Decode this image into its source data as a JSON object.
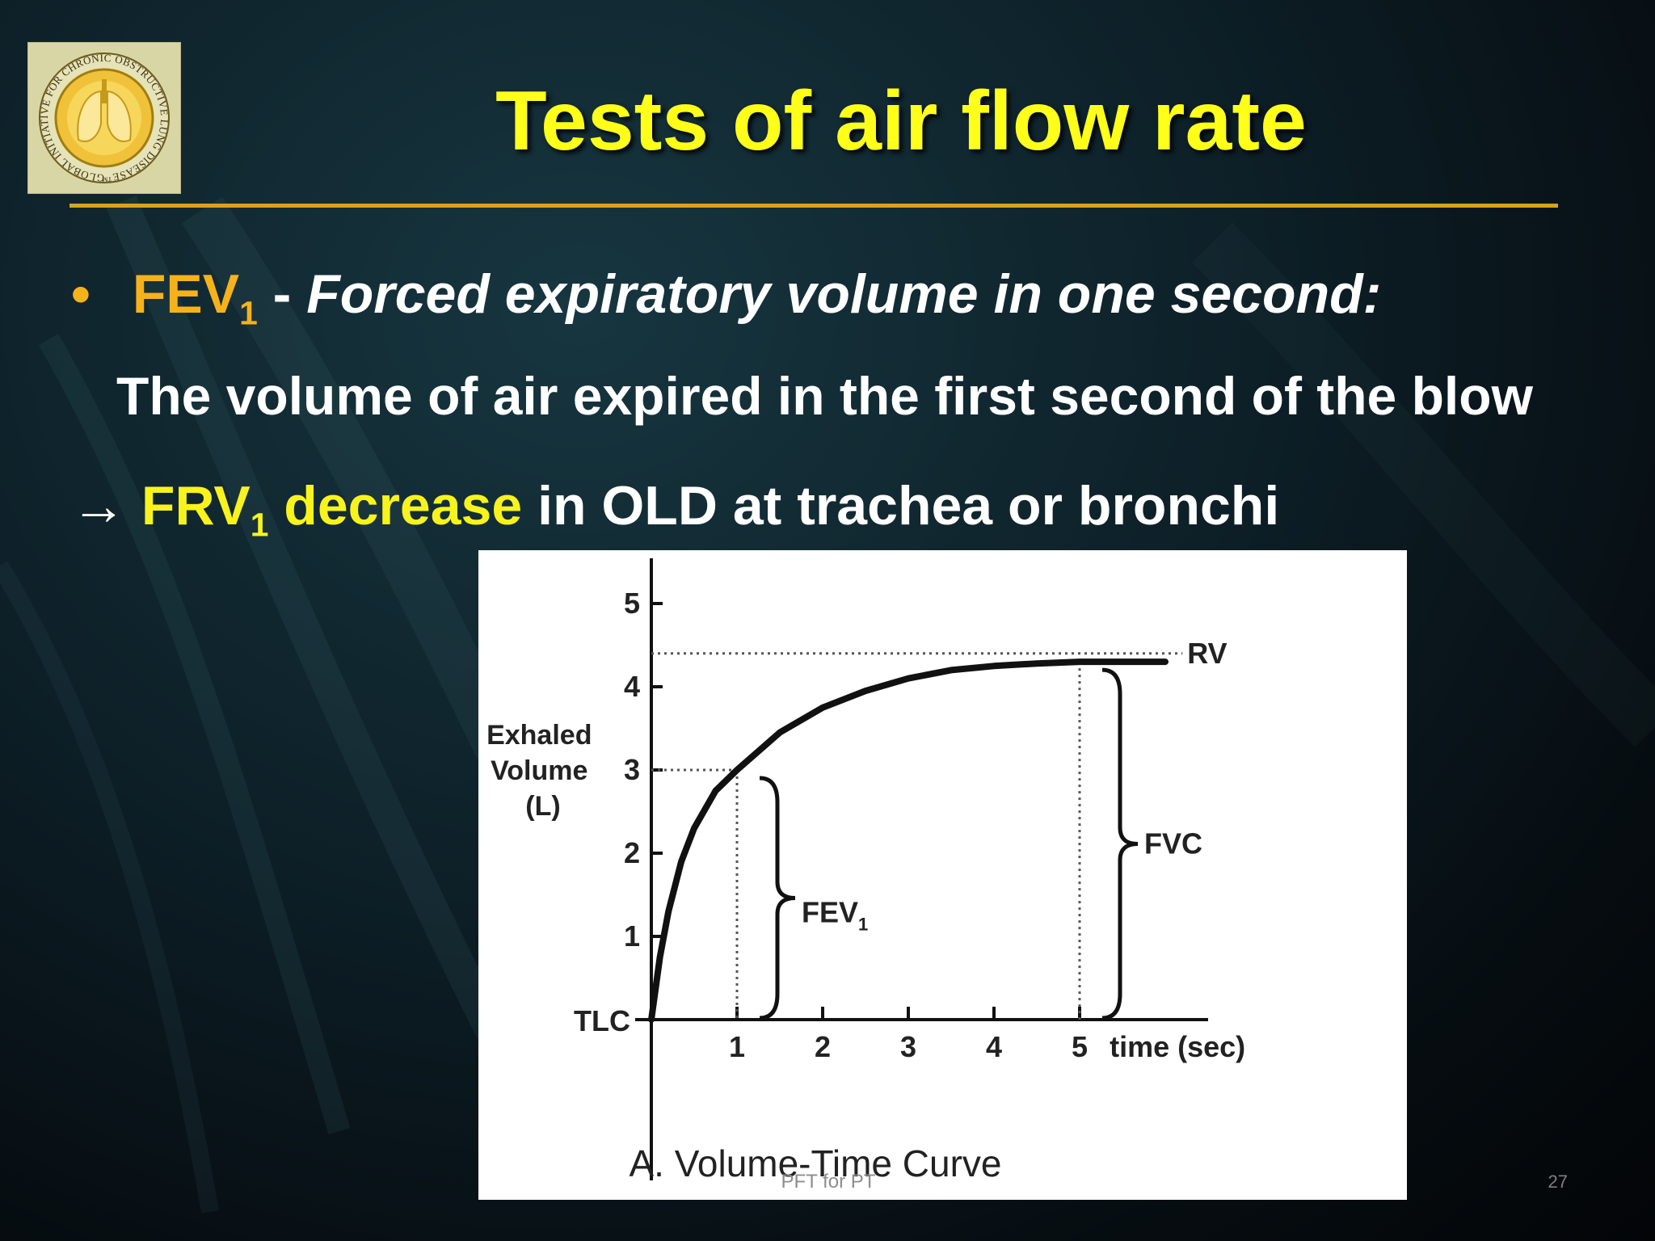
{
  "slide": {
    "title": "Tests of air flow rate",
    "bullet_symbol": "•",
    "bullet1_term": "FEV",
    "bullet1_sub": "1",
    "bullet1_dash": " - ",
    "bullet1_definition": "Forced expiratory volume in one second:",
    "bullet1_detail": "The volume of air expired in the first second of the blow",
    "arrow_symbol": "→",
    "line3_term": "FRV",
    "line3_sub": "1",
    "line3_highlight": " decrease",
    "line3_rest": " in OLD at trachea or bronchi",
    "footer": "PFT for PT",
    "page_number": "27"
  },
  "logo": {
    "ring_text": "GLOBAL INITIATIVE FOR CHRONIC OBSTRUCTIVE LUNG DISEASE™"
  },
  "colors": {
    "title": "#ffff1a",
    "accent_orange": "#f6b21b",
    "accent_yellow": "#f8f31c",
    "rule": "#d9a21c"
  },
  "chart_data": {
    "type": "line",
    "title": "A. Volume-Time Curve",
    "xlabel": "time (sec)",
    "ylabel": "Exhaled Volume (L)",
    "x_ticks": [
      "1",
      "2",
      "3",
      "4",
      "5"
    ],
    "y_ticks": [
      "1",
      "2",
      "3",
      "4",
      "5"
    ],
    "origin_label": "TLC",
    "xlim": [
      0,
      6.5
    ],
    "ylim": [
      0,
      5.5
    ],
    "grid": false,
    "series": [
      {
        "x": [
          0,
          0.1,
          0.2,
          0.35,
          0.5,
          0.75,
          1,
          1.5,
          2,
          2.5,
          3,
          3.5,
          4,
          4.5,
          5,
          5.5,
          6
        ],
        "y": [
          0,
          0.75,
          1.3,
          1.9,
          2.3,
          2.75,
          3.0,
          3.45,
          3.75,
          3.95,
          4.1,
          4.2,
          4.25,
          4.28,
          4.3,
          4.3,
          4.3
        ]
      }
    ],
    "annotations": {
      "rv_label": "RV",
      "rv_level": 4.4,
      "fev1_label": "FEV",
      "fev1_sub": "1",
      "fev1_value": 3.0,
      "fev1_time": 1,
      "fvc_label": "FVC",
      "fvc_value": 4.3,
      "fvc_time": 5
    }
  }
}
